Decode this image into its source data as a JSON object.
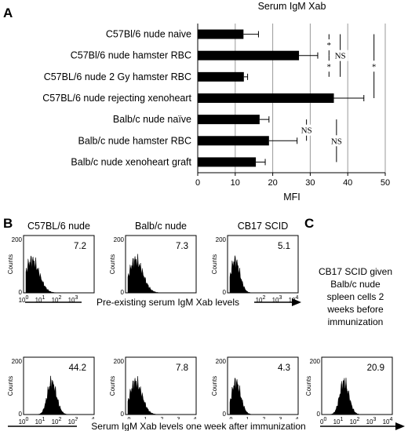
{
  "panels": {
    "A": "A",
    "B": "B",
    "C": "C"
  },
  "chart_data": [
    {
      "type": "bar",
      "orientation": "horizontal",
      "title": "Serum IgM Xab",
      "xlabel": "MFI",
      "xlim": [
        0,
        50
      ],
      "xticks": [
        0,
        10,
        20,
        30,
        40,
        50
      ],
      "grid": "vertical",
      "categories": [
        "C57Bl/6 nude naive",
        "C57Bl/6 nude hamster RBC",
        "C57BL/6 nude 2 Gy hamster RBC",
        "C57BL/6 nude rejecting xenoheart",
        "Balb/c nude naïve",
        "Balb/c nude hamster RBC",
        "Balb/c nude xenoheart graft"
      ],
      "values": [
        12.2,
        27,
        12.3,
        36.3,
        16.5,
        19,
        15.5
      ],
      "errors": [
        4,
        5,
        1,
        8,
        2.5,
        7.5,
        2.5
      ],
      "significance": [
        {
          "from": 0,
          "to": 1,
          "label": "*"
        },
        {
          "from": 1,
          "to": 2,
          "label": "*"
        },
        {
          "from": 0,
          "to": 2,
          "label": "NS"
        },
        {
          "from": 0,
          "to": 3,
          "label": "*"
        },
        {
          "from": 4,
          "to": 5,
          "label": "NS"
        },
        {
          "from": 4,
          "to": 6,
          "label": "NS"
        }
      ]
    }
  ],
  "histograms": {
    "ylabel": "Counts",
    "yticks": [
      "0",
      "200"
    ],
    "xtick_base": "10",
    "xtick_exps": [
      "0",
      "1",
      "2",
      "3",
      "4"
    ],
    "row1": [
      {
        "title": "C57BL/6 nude",
        "value": "7.2",
        "peak_log": 0.35,
        "width_log": 0.45
      },
      {
        "title": "Balb/c nude",
        "value": "7.3",
        "peak_log": 0.45,
        "width_log": 0.45
      },
      {
        "title": "CB17 SCID",
        "value": "5.1",
        "peak_log": 0.3,
        "width_log": 0.3
      }
    ],
    "row2": [
      {
        "value": "44.2",
        "peak_log": 1.55,
        "width_log": 0.3
      },
      {
        "value": "7.8",
        "peak_log": 0.45,
        "width_log": 0.4
      },
      {
        "value": "4.3",
        "peak_log": 0.35,
        "width_log": 0.3
      }
    ],
    "c_hist": {
      "value": "20.9",
      "peak_log": 1.2,
      "width_log": 0.3
    },
    "row1_caption": "Pre-existing  serum IgM Xab levels",
    "row2_caption": "Serum IgM Xab levels one week after immunization",
    "c_note": [
      "CB17 SCID given",
      "Balb/c nude",
      "spleen cells 2",
      "weeks before",
      "immunization"
    ]
  }
}
